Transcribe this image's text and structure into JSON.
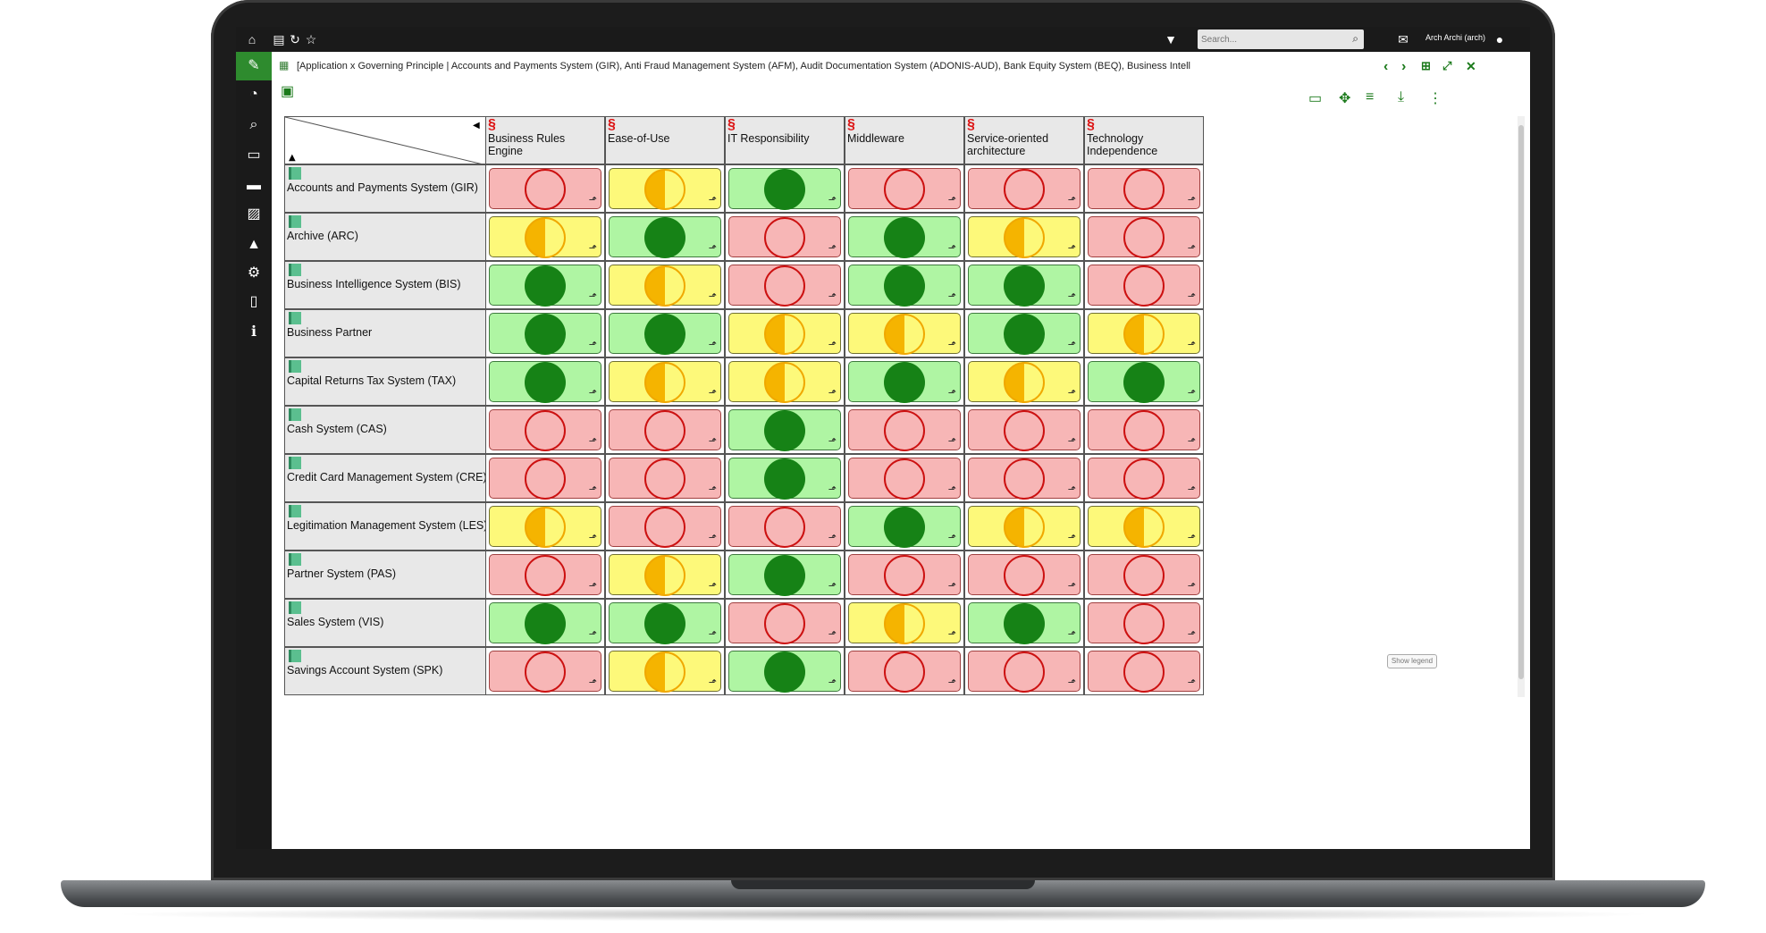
{
  "window": {
    "path_text": "[Application x Governing Principle | Accounts and Payments System (GIR), Anti Fraud Management System (AFM), Audit Documentation System (ADONIS-AUD), Bank Equity System (BEQ), Business Intelligence System (BIS), Business Partner...",
    "search_placeholder": "Search...",
    "user": "Arch Archi (arch)",
    "show_legend": "Show legend"
  },
  "icons": {
    "home": "home-icon",
    "filter": "filter-icon",
    "chat": "chat-icon",
    "user": "user-icon",
    "edit": "edit-icon"
  },
  "colors": {
    "red_bg": "#f7b6b6",
    "yellow_bg": "#fdf97a",
    "green_bg": "#aff5a3",
    "green_dot": "#168216",
    "accent": "#2e8b2e"
  },
  "matrix": {
    "columns": [
      "Business Rules Engine",
      "Ease-of-Use",
      "IT Responsibility",
      "Middleware",
      "Service-oriented architecture",
      "Technology Independence"
    ],
    "rows": [
      {
        "label": "Accounts and Payments System (GIR)",
        "values": [
          "red",
          "yellow",
          "green",
          "red",
          "red",
          "red"
        ]
      },
      {
        "label": "Archive (ARC)",
        "values": [
          "yellow",
          "green",
          "red",
          "green",
          "yellow",
          "red"
        ]
      },
      {
        "label": "Business Intelligence System (BIS)",
        "values": [
          "green",
          "yellow",
          "red",
          "green",
          "green",
          "red"
        ]
      },
      {
        "label": "Business Partner",
        "values": [
          "green",
          "green",
          "yellow",
          "yellow",
          "green",
          "yellow"
        ]
      },
      {
        "label": "Capital Returns Tax System (TAX)",
        "values": [
          "green",
          "yellow",
          "yellow",
          "green",
          "yellow",
          "green"
        ]
      },
      {
        "label": "Cash System (CAS)",
        "values": [
          "red",
          "red",
          "green",
          "red",
          "red",
          "red"
        ]
      },
      {
        "label": "Credit Card Management System (CRE)",
        "values": [
          "red",
          "red",
          "green",
          "red",
          "red",
          "red"
        ]
      },
      {
        "label": "Legitimation Management System (LES)",
        "values": [
          "yellow",
          "red",
          "red",
          "green",
          "yellow",
          "yellow"
        ]
      },
      {
        "label": "Partner System (PAS)",
        "values": [
          "red",
          "yellow",
          "green",
          "red",
          "red",
          "red"
        ]
      },
      {
        "label": "Sales System (VIS)",
        "values": [
          "green",
          "green",
          "red",
          "yellow",
          "green",
          "red"
        ]
      },
      {
        "label": "Savings Account System (SPK)",
        "values": [
          "red",
          "yellow",
          "green",
          "red",
          "red",
          "red"
        ]
      }
    ]
  }
}
